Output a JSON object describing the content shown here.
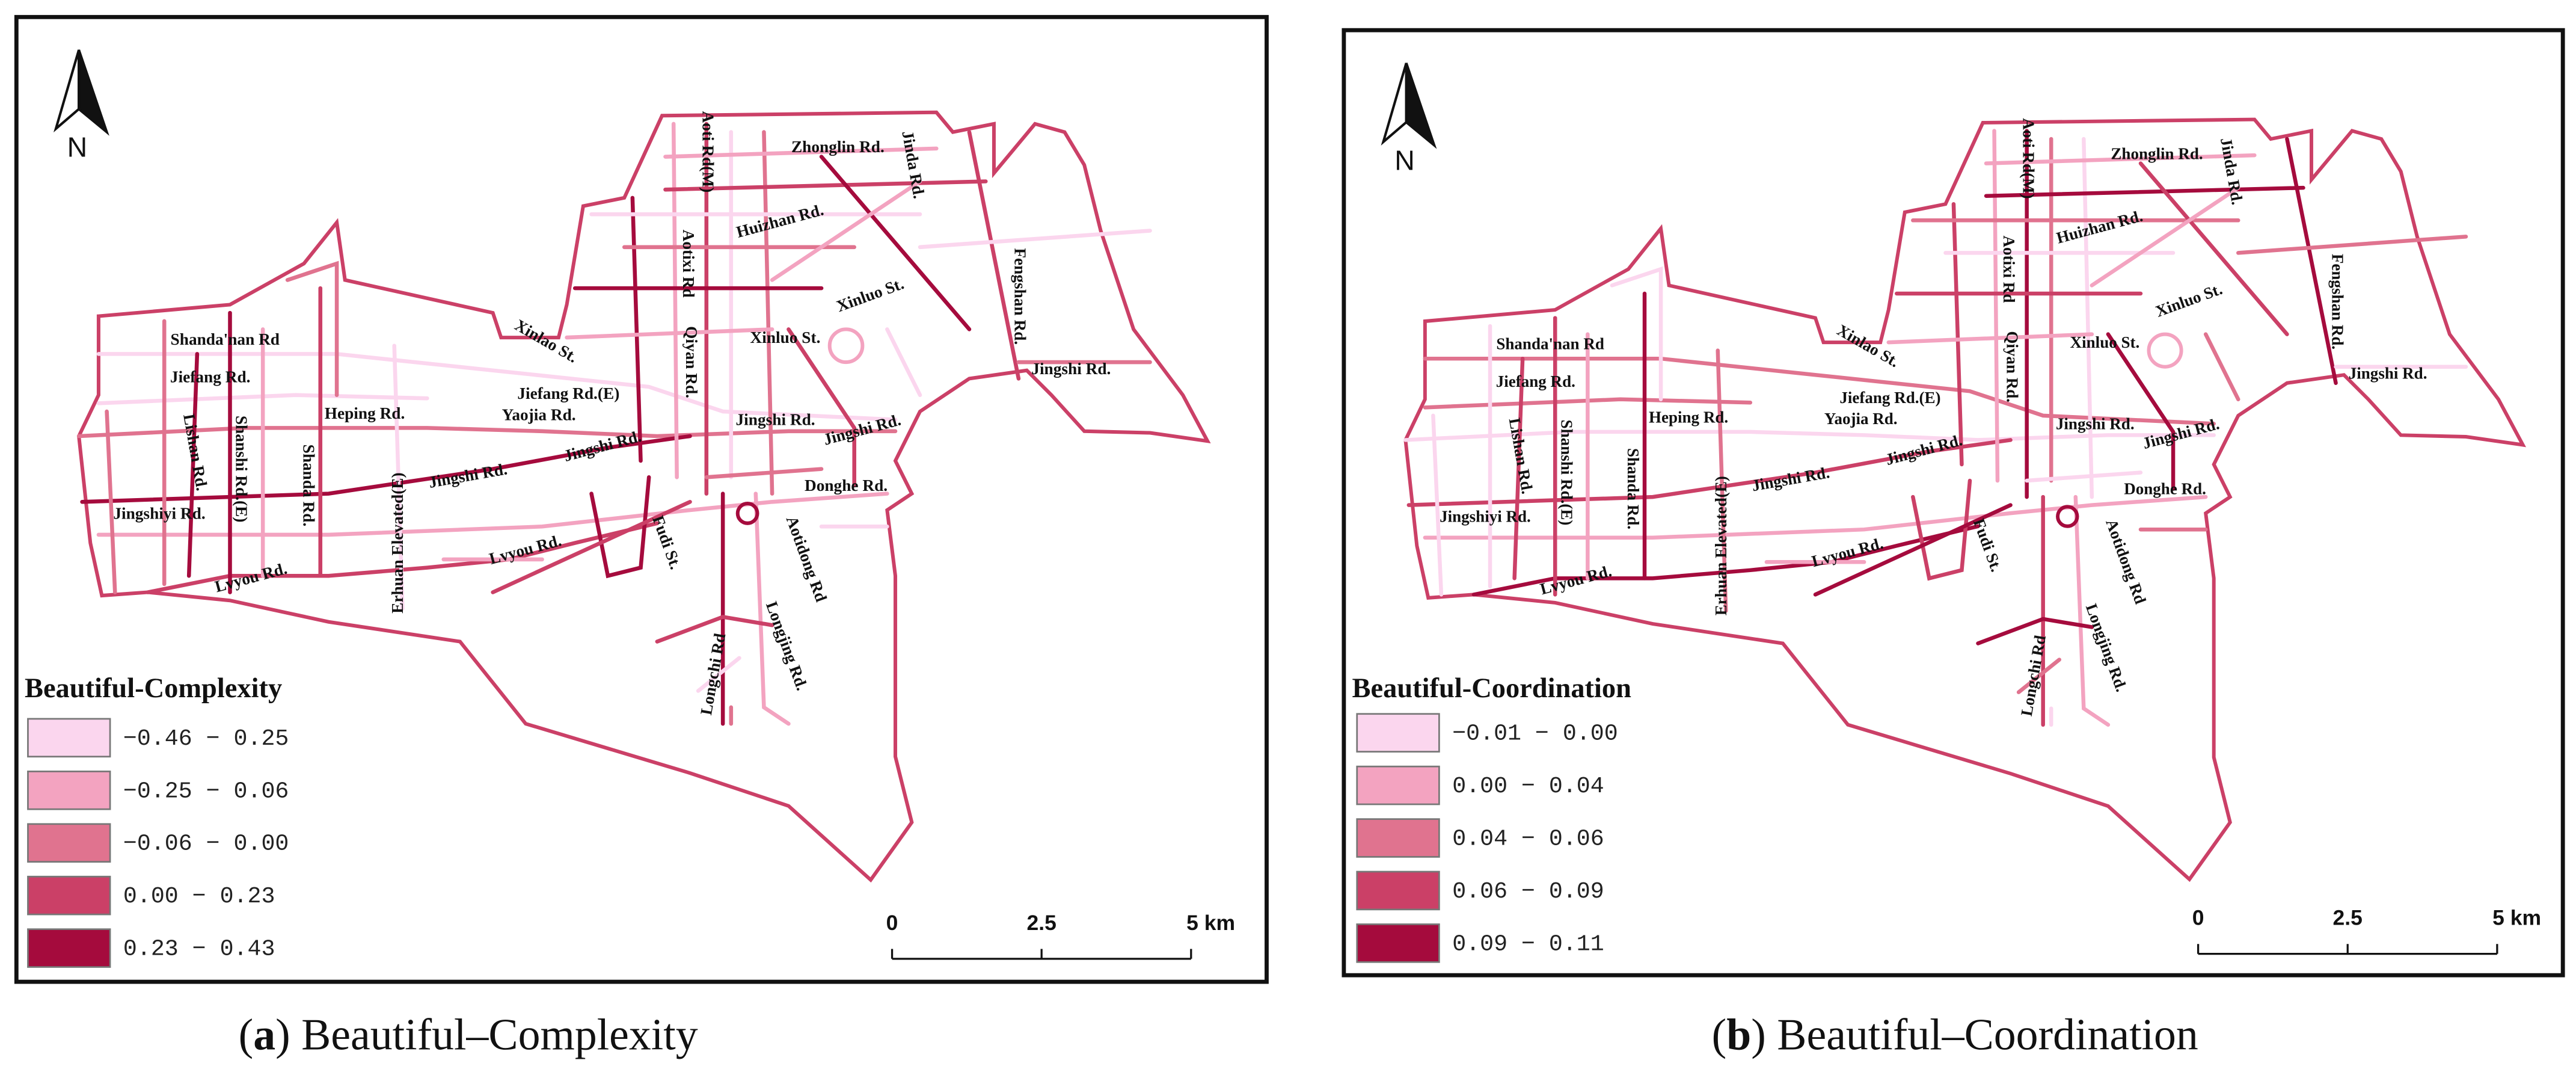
{
  "north": "N",
  "scale_labels": [
    "0",
    "2.5",
    "5 km"
  ],
  "panels": [
    {
      "caption": [
        "(",
        "a",
        ") Beautiful–Complexity"
      ],
      "legend_title": "Beautiful-Complexity",
      "legend": [
        {
          "label": "−0.46 − 0.25",
          "color": "#fbd6ee"
        },
        {
          "label": "−0.25 − 0.06",
          "color": "#f3a3c0"
        },
        {
          "label": "−0.06 − 0.00",
          "color": "#e0738f"
        },
        {
          "label": "0.00 − 0.23",
          "color": "#cb4067"
        },
        {
          "label": "0.23 − 0.43",
          "color": "#a50b3d"
        }
      ],
      "roads": [
        "Zhonglin Rd.",
        "Aoti Rd(M)",
        "Jinda Rd.",
        "Aotixi Rd",
        "Huizhan Rd.",
        "Fengshan Rd.",
        "Xinluo St.",
        "Xinluo St.",
        "Shanda'nan Rd",
        "Xinlao St.",
        "Qiyan Rd.",
        "Jiefang Rd.",
        "Jingshi Rd.",
        "Heping Rd.",
        "Jiefang Rd.(E)",
        "Yaojia Rd.",
        "Jingshi Rd.",
        "Jingshi Rd.",
        "Lishan Rd.",
        "Shanshi Rd.(E)",
        "Jingshi Rd.",
        "Shanda Rd.",
        "Jingshi Rd.",
        "Donghe Rd.",
        "Erhuan Elevated(E)",
        "Jingshiyi Rd.",
        "Fudi St.",
        "Aotidong Rd",
        "Lvyou Rd.",
        "Lvyou Rd.",
        "Longjing Rd.",
        "Longchi Rd"
      ]
    },
    {
      "caption": [
        "(",
        "b",
        ") Beautiful–Coordination"
      ],
      "legend_title": "Beautiful-Coordination",
      "legend": [
        {
          "label": "−0.01 − 0.00",
          "color": "#fbd6ee"
        },
        {
          "label": "0.00 − 0.04",
          "color": "#f3a3c0"
        },
        {
          "label": "0.04 − 0.06",
          "color": "#e0738f"
        },
        {
          "label": "0.06 − 0.09",
          "color": "#cb4067"
        },
        {
          "label": "0.09 − 0.11",
          "color": "#a50b3d"
        }
      ],
      "roads": [
        "Zhonglin Rd.",
        "Aoti Rd(M)",
        "Jinda Rd.",
        "Aotixi Rd",
        "Huizhan Rd.",
        "Fengshan Rd.",
        "Xinluo St.",
        "Xinluo St.",
        "Shanda'nan Rd",
        "Xinlao St.",
        "Qiyan Rd.",
        "Jiefang Rd.",
        "Jingshi Rd.",
        "Heping Rd.",
        "Jiefang Rd.(E)",
        "Yaojia Rd.",
        "Jingshi Rd.",
        "Jingshi Rd.",
        "Lishan Rd.",
        "Shanshi Rd.(E)",
        "Jingshi Rd.",
        "Shanda Rd.",
        "Jingshi Rd.",
        "Donghe Rd.",
        "Erhuan Elevated(E)",
        "Jingshiyi Rd.",
        "Fudi St.",
        "Aotidong Rd",
        "Lvyou Rd.",
        "Lvyou Rd.",
        "Longjing Rd.",
        "Longchi Rd"
      ]
    }
  ]
}
